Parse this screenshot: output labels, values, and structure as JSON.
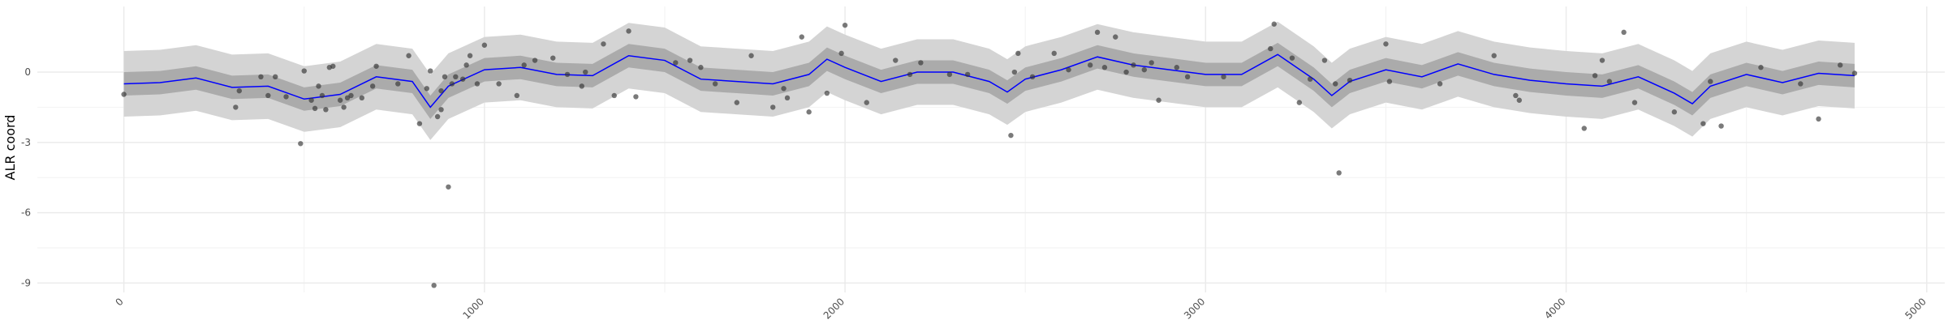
{
  "chart_data": {
    "type": "line",
    "y_label": "ALR coord",
    "xlim": [
      -240,
      5050
    ],
    "ylim": [
      -9.4,
      2.8
    ],
    "xticks": [
      0,
      1000,
      2000,
      3000,
      4000,
      5000
    ],
    "yticks": [
      0,
      -3,
      -6,
      -9
    ],
    "grid": true,
    "color": "#0000ff",
    "x": [
      0,
      100,
      200,
      300,
      400,
      500,
      600,
      700,
      800,
      850,
      900,
      1000,
      1100,
      1200,
      1300,
      1400,
      1500,
      1600,
      1700,
      1800,
      1900,
      1950,
      2000,
      2100,
      2200,
      2300,
      2400,
      2450,
      2500,
      2600,
      2700,
      2800,
      2900,
      3000,
      3100,
      3200,
      3300,
      3350,
      3400,
      3500,
      3600,
      3700,
      3800,
      3900,
      4000,
      4100,
      4200,
      4300,
      4350,
      4400,
      4500,
      4600,
      4700,
      4800
    ],
    "values": [
      -0.5,
      -0.45,
      -0.25,
      -0.65,
      -0.6,
      -1.15,
      -0.95,
      -0.2,
      -0.4,
      -1.5,
      -0.6,
      0.1,
      0.2,
      -0.1,
      -0.15,
      0.7,
      0.5,
      -0.3,
      -0.4,
      -0.5,
      -0.1,
      0.55,
      0.2,
      -0.4,
      0,
      0,
      -0.4,
      -0.85,
      -0.3,
      0.1,
      0.65,
      0.3,
      0.1,
      -0.1,
      -0.1,
      0.75,
      -0.3,
      -1.0,
      -0.4,
      0.1,
      -0.2,
      0.35,
      -0.1,
      -0.35,
      -0.5,
      -0.6,
      -0.2,
      -0.9,
      -1.35,
      -0.6,
      -0.1,
      -0.45,
      -0.05,
      -0.15
    ],
    "ribbons": [
      {
        "color": "#d4d4d4",
        "lower": [
          -1.9,
          -1.85,
          -1.65,
          -2.05,
          -2,
          -2.55,
          -2.35,
          -1.6,
          -1.8,
          -2.9,
          -2,
          -1.3,
          -1.2,
          -1.5,
          -1.55,
          -0.7,
          -0.9,
          -1.7,
          -1.8,
          -1.9,
          -1.5,
          -0.85,
          -1.2,
          -1.8,
          -1.4,
          -1.4,
          -1.8,
          -2.25,
          -1.7,
          -1.3,
          -0.75,
          -1.1,
          -1.3,
          -1.5,
          -1.5,
          -0.65,
          -1.7,
          -2.4,
          -1.8,
          -1.3,
          -1.6,
          -1.05,
          -1.5,
          -1.75,
          -1.9,
          -2,
          -1.6,
          -2.3,
          -2.75,
          -2,
          -1.5,
          -1.85,
          -1.45,
          -1.55
        ],
        "upper": [
          0.9,
          0.95,
          1.15,
          0.75,
          0.8,
          0.25,
          0.45,
          1.2,
          1,
          -0.1,
          0.8,
          1.5,
          1.6,
          1.3,
          1.25,
          2.1,
          1.9,
          1.1,
          1,
          0.9,
          1.3,
          1.95,
          1.6,
          1,
          1.4,
          1.4,
          1,
          0.55,
          1.1,
          1.5,
          2.05,
          1.7,
          1.5,
          1.3,
          1.3,
          2.15,
          1.1,
          0.4,
          1,
          1.5,
          1.2,
          1.75,
          1.3,
          1.05,
          0.9,
          0.8,
          1.2,
          0.5,
          0.05,
          0.8,
          1.3,
          0.95,
          1.35,
          1.25
        ]
      },
      {
        "color": "#ababab",
        "lower": [
          -1,
          -0.95,
          -0.75,
          -1.15,
          -1.1,
          -1.65,
          -1.45,
          -0.7,
          -0.9,
          -2,
          -1.1,
          -0.4,
          -0.3,
          -0.6,
          -0.65,
          0.2,
          0,
          -0.8,
          -0.9,
          -1,
          -0.6,
          0.05,
          -0.3,
          -0.9,
          -0.5,
          -0.5,
          -0.9,
          -1.35,
          -0.8,
          -0.4,
          0.15,
          -0.2,
          -0.4,
          -0.6,
          -0.6,
          0.25,
          -0.8,
          -1.5,
          -0.9,
          -0.4,
          -0.7,
          -0.15,
          -0.6,
          -0.85,
          -1,
          -1.1,
          -0.7,
          -1.4,
          -1.85,
          -1.1,
          -0.6,
          -0.95,
          -0.55,
          -0.65
        ],
        "upper": [
          0,
          0.05,
          0.25,
          -0.15,
          -0.1,
          -0.65,
          -0.45,
          0.3,
          0.1,
          -1,
          -0.1,
          0.6,
          0.7,
          0.4,
          0.35,
          1.2,
          1,
          0.2,
          0.1,
          0,
          0.4,
          1.05,
          0.7,
          0.1,
          0.5,
          0.5,
          0.1,
          -0.35,
          0.2,
          0.6,
          1.15,
          0.8,
          0.6,
          0.4,
          0.4,
          1.25,
          0.2,
          -0.5,
          0.1,
          0.6,
          0.3,
          0.85,
          0.4,
          0.15,
          0,
          -0.1,
          0.3,
          -0.4,
          -0.85,
          -0.1,
          0.4,
          0.05,
          0.45,
          0.35
        ]
      }
    ],
    "points": {
      "color": "#333333",
      "x": [
        0,
        310,
        320,
        380,
        400,
        420,
        450,
        490,
        500,
        520,
        530,
        540,
        550,
        560,
        570,
        580,
        600,
        610,
        620,
        630,
        660,
        690,
        700,
        760,
        790,
        820,
        840,
        850,
        860,
        880,
        890,
        880,
        870,
        900,
        910,
        920,
        940,
        950,
        960,
        980,
        1000,
        1040,
        1090,
        1110,
        1140,
        1190,
        1230,
        1270,
        1280,
        1330,
        1360,
        1400,
        1420,
        1530,
        1570,
        1600,
        1640,
        1700,
        1740,
        1800,
        1830,
        1840,
        1880,
        1900,
        1950,
        1990,
        2000,
        2060,
        2140,
        2180,
        2210,
        2290,
        2340,
        2460,
        2470,
        2480,
        2520,
        2580,
        2620,
        2680,
        2700,
        2720,
        2750,
        2780,
        2800,
        2830,
        2850,
        2870,
        2920,
        2950,
        3050,
        3180,
        3190,
        3240,
        3260,
        3290,
        3330,
        3360,
        3370,
        3400,
        3500,
        3510,
        3650,
        3800,
        3860,
        3870,
        4050,
        4080,
        4100,
        4120,
        4160,
        4190,
        4300,
        4380,
        4400,
        4430,
        4540,
        4650,
        4700,
        4760,
        4800
      ],
      "y": [
        -0.95,
        -1.5,
        -0.8,
        -0.2,
        -1.0,
        -0.2,
        -1.05,
        -3.05,
        0.05,
        -1.2,
        -1.55,
        -0.6,
        -1.0,
        -1.6,
        0.2,
        0.25,
        -1.2,
        -1.5,
        -1.1,
        -1.0,
        -1.1,
        -0.6,
        0.25,
        -0.5,
        0.7,
        -2.2,
        -0.7,
        0.05,
        -9.1,
        -0.8,
        -0.2,
        -1.6,
        -1.9,
        -4.9,
        -0.5,
        -0.2,
        -0.3,
        0.3,
        0.7,
        -0.5,
        1.15,
        -0.5,
        -1.0,
        0.3,
        0.5,
        0.6,
        -0.1,
        -0.6,
        0.0,
        1.2,
        -1.0,
        1.75,
        -1.05,
        0.4,
        0.5,
        0.2,
        -0.5,
        -1.3,
        0.7,
        -1.5,
        -0.7,
        -1.1,
        1.5,
        -1.7,
        -0.9,
        0.8,
        2.0,
        -1.3,
        0.5,
        -0.1,
        0.4,
        -0.1,
        -0.1,
        -2.7,
        0.0,
        0.8,
        -0.2,
        0.8,
        0.1,
        0.3,
        1.7,
        0.2,
        1.5,
        0.0,
        0.3,
        0.1,
        0.4,
        -1.2,
        0.2,
        -0.2,
        -0.2,
        1.0,
        2.05,
        0.6,
        -1.3,
        -0.3,
        0.5,
        -0.5,
        -4.3,
        -0.35,
        1.2,
        -0.4,
        -0.5,
        0.7,
        -1.0,
        -1.2,
        -2.4,
        -0.15,
        0.5,
        -0.4,
        1.7,
        -1.3,
        -1.7,
        -2.2,
        -0.4,
        -2.3,
        0.2,
        -0.5,
        -2.0,
        0.3,
        -0.05
      ]
    }
  }
}
